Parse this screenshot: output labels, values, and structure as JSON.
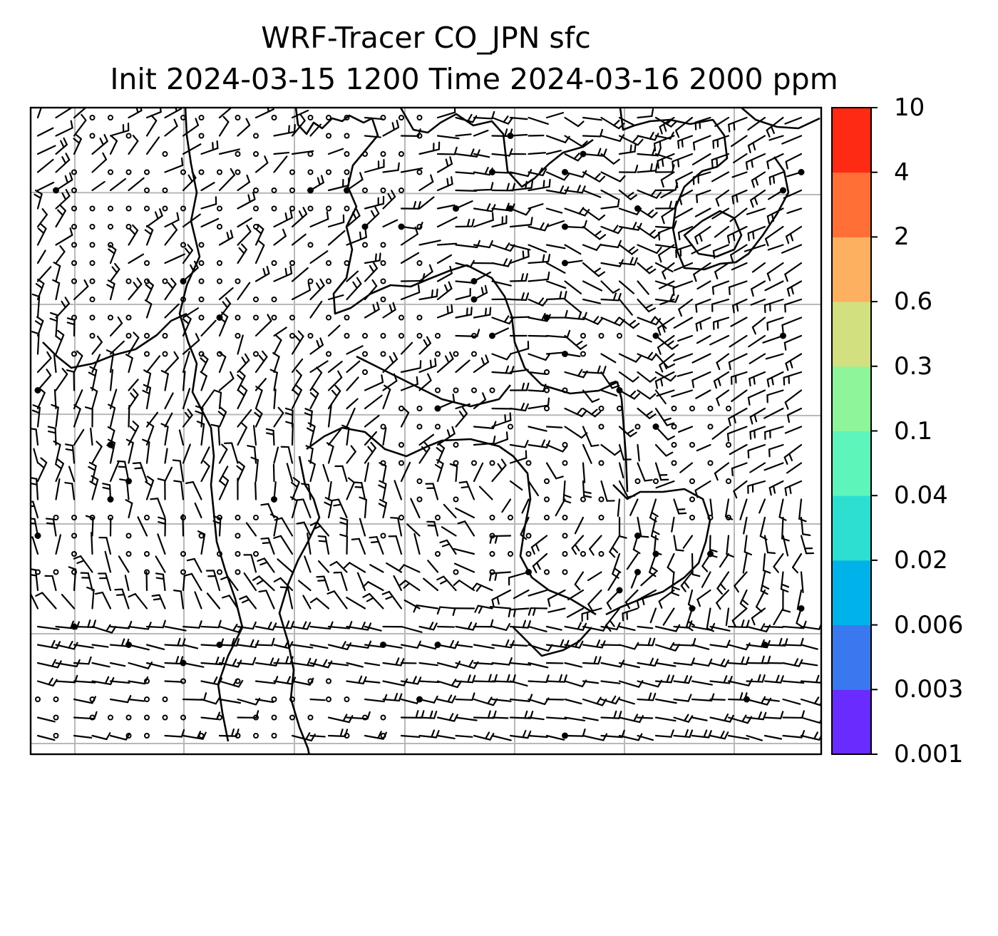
{
  "title": {
    "line1": "WRF-Tracer CO_JPN sfc",
    "line2": "Init 2024-03-15 1200 Time 2024-03-16 2000 ppm"
  },
  "colorbar": {
    "levels": [
      "0.001",
      "0.003",
      "0.006",
      "0.02",
      "0.04",
      "0.1",
      "0.3",
      "0.6",
      "2",
      "4",
      "10"
    ],
    "colors": [
      "#6a2bff",
      "#3a78f0",
      "#00b2ea",
      "#2ddfd0",
      "#5ef5bb",
      "#8ef59a",
      "#d2e080",
      "#fdb060",
      "#ff6f36",
      "#ff2a14"
    ]
  },
  "map": {
    "grid_color": "#b8b8b8",
    "coastline_color": "#000000",
    "barb_color": "#000000"
  }
}
